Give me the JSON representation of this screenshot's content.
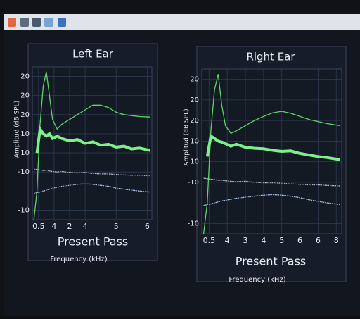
{
  "chart_data": [
    {
      "type": "line",
      "title": "Left Ear",
      "annotation": "Present Pass",
      "xlabel": "Frequency (kHz)",
      "ylabel": "Amplitud (dB SPL)",
      "grid": true,
      "x": [
        -0.3,
        -0.1,
        0.1,
        0.3,
        0.5,
        0.7,
        0.9,
        1.2,
        1.5,
        2,
        2.5,
        3,
        3.5,
        4,
        4.5,
        5,
        5.5,
        6,
        6.5,
        7.2
      ],
      "xlim": [
        -0.4,
        7.3
      ],
      "xticks": [
        {
          "value": 0,
          "label": "0.5"
        },
        {
          "value": 1,
          "label": "4"
        },
        2,
        {
          "value": 3,
          "label": "4"
        },
        5,
        {
          "value": 7,
          "label": "6"
        }
      ],
      "ylim": [
        -6,
        26
      ],
      "yticks": [
        {
          "value": 24,
          "label": "20"
        },
        20,
        {
          "value": 16,
          "label": "20"
        },
        {
          "value": 12,
          "label": "10"
        },
        {
          "value": 8,
          "label": "10"
        },
        {
          "value": 4,
          "label": "-10"
        },
        {
          "value": -4,
          "label": "-10"
        }
      ],
      "series": [
        {
          "color": "#5fd36a",
          "values": [
            -6,
            0,
            14,
            22,
            25,
            20,
            15,
            13,
            14,
            15,
            16,
            17,
            18,
            18,
            17.5,
            16.5,
            16,
            15.8,
            15.6,
            15.5
          ]
        },
        {
          "color": "#7cf08a",
          "values": [
            null,
            8,
            13,
            12,
            11.5,
            12,
            11,
            11.5,
            11,
            10.5,
            10.8,
            10,
            10.3,
            9.6,
            9.8,
            9.2,
            9.4,
            8.8,
            9,
            8.5
          ]
        },
        {
          "color": "#b8bcc6",
          "values": [
            4.6,
            4.5,
            4.4,
            4.3,
            4.4,
            4.2,
            4.1,
            4,
            4.1,
            3.9,
            3.8,
            3.9,
            3.7,
            3.6,
            3.6,
            3.5,
            3.4,
            3.3,
            3.3,
            3.2
          ]
        },
        {
          "color": "#a9c2e8",
          "values": [
            -0.5,
            -0.3,
            -0.2,
            0,
            0.2,
            0.4,
            0.6,
            0.8,
            1,
            1.2,
            1.4,
            1.5,
            1.4,
            1.2,
            1,
            0.6,
            0.4,
            0.2,
            0,
            -0.2
          ]
        }
      ]
    },
    {
      "type": "line",
      "title": "Right Ear",
      "annotation": "Present Pass",
      "xlabel": "Frequency (kHz)",
      "ylabel": "Amplitud (dB SPL)",
      "grid": true,
      "x": [
        -0.3,
        -0.1,
        0.1,
        0.3,
        0.5,
        0.7,
        0.9,
        1.2,
        1.5,
        2,
        2.5,
        3,
        3.5,
        4,
        4.5,
        5,
        5.5,
        6,
        6.5,
        7.2
      ],
      "xlim": [
        -0.4,
        7.3
      ],
      "xticks": [
        {
          "value": 0,
          "label": "0.5"
        },
        {
          "value": 1,
          "label": "4"
        },
        {
          "value": 2,
          "label": "3"
        },
        {
          "value": 3,
          "label": "4"
        },
        {
          "value": 4,
          "label": "5"
        },
        {
          "value": 5,
          "label": "6"
        },
        {
          "value": 6,
          "label": "6"
        },
        {
          "value": 7,
          "label": "8"
        }
      ],
      "ylim": [
        -6,
        26
      ],
      "yticks": [
        {
          "value": 24,
          "label": "20"
        },
        20,
        {
          "value": 16,
          "label": "20"
        },
        {
          "value": 12,
          "label": "10"
        },
        {
          "value": 8,
          "label": "10"
        },
        {
          "value": 4,
          "label": "-10"
        },
        {
          "value": -4,
          "label": "-10"
        }
      ],
      "series": [
        {
          "color": "#5fd36a",
          "values": [
            -6,
            0,
            14,
            22,
            25,
            19,
            15,
            13.5,
            14,
            15,
            16,
            16.8,
            17.5,
            17.8,
            17.4,
            16.8,
            16.2,
            15.8,
            15.4,
            15
          ]
        },
        {
          "color": "#7cf08a",
          "values": [
            null,
            9,
            13,
            12.5,
            12,
            11.8,
            11.5,
            11,
            11.4,
            10.8,
            10.6,
            10.5,
            10.2,
            10,
            10.1,
            9.6,
            9.3,
            9,
            8.8,
            8.4
          ]
        },
        {
          "color": "#b8bcc6",
          "values": [
            4.8,
            4.7,
            4.6,
            4.5,
            4.4,
            4.4,
            4.3,
            4.2,
            4.1,
            4.2,
            4,
            3.9,
            3.9,
            3.8,
            3.7,
            3.6,
            3.5,
            3.5,
            3.4,
            3.3
          ]
        },
        {
          "color": "#a9c2e8",
          "values": [
            -0.5,
            -0.3,
            -0.2,
            0,
            0.2,
            0.4,
            0.5,
            0.7,
            0.9,
            1.1,
            1.3,
            1.5,
            1.6,
            1.5,
            1.3,
            1,
            0.6,
            0.3,
            0,
            -0.3
          ]
        }
      ]
    }
  ]
}
